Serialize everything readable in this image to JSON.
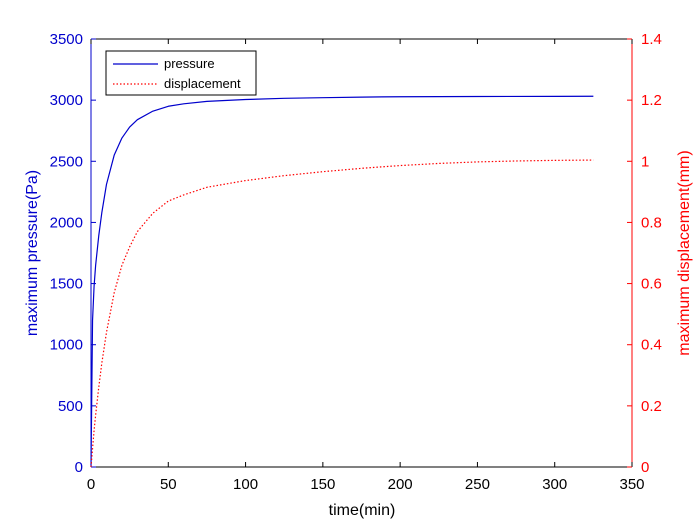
{
  "chart_data": {
    "type": "line",
    "xlabel": "time(min)",
    "ylabel_left": "maximum pressure(Pa)",
    "ylabel_right": "maximum displacement(mm)",
    "xlim": [
      0,
      350
    ],
    "ylim_left": [
      0,
      3500
    ],
    "ylim_right": [
      0,
      1.4
    ],
    "x_ticks": [
      "0",
      "50",
      "100",
      "150",
      "200",
      "250",
      "300",
      "350"
    ],
    "y_left_ticks": [
      "0",
      "500",
      "1000",
      "1500",
      "2000",
      "2500",
      "3000",
      "3500"
    ],
    "y_right_ticks": [
      "0",
      "0.2",
      "0.4",
      "0.6",
      "0.8",
      "1",
      "1.2",
      "1.4"
    ],
    "grid": false,
    "legend_position": "top-left",
    "colors": {
      "pressure": "#0000cc",
      "displacement": "#ff0000",
      "left_axis": "#0000cc",
      "right_axis": "#ff0000"
    },
    "series": [
      {
        "name": "pressure",
        "axis": "left",
        "style": "solid",
        "x": [
          0,
          1,
          2,
          3,
          5,
          7,
          10,
          15,
          20,
          25,
          30,
          40,
          50,
          60,
          75,
          100,
          125,
          150,
          175,
          200,
          250,
          300,
          325
        ],
        "y": [
          0,
          1200,
          1480,
          1650,
          1890,
          2080,
          2310,
          2550,
          2690,
          2780,
          2840,
          2910,
          2950,
          2970,
          2990,
          3005,
          3015,
          3020,
          3025,
          3028,
          3030,
          3031,
          3032
        ]
      },
      {
        "name": "displacement",
        "axis": "right",
        "style": "dotted",
        "x": [
          0,
          1,
          2,
          3,
          5,
          7,
          10,
          15,
          20,
          25,
          30,
          40,
          50,
          60,
          75,
          100,
          125,
          150,
          175,
          200,
          225,
          250,
          275,
          300,
          325
        ],
        "y": [
          0,
          0.06,
          0.12,
          0.17,
          0.26,
          0.34,
          0.44,
          0.57,
          0.66,
          0.72,
          0.77,
          0.83,
          0.87,
          0.89,
          0.915,
          0.937,
          0.953,
          0.966,
          0.977,
          0.986,
          0.993,
          0.998,
          1.001,
          1.003,
          1.004
        ]
      }
    ]
  }
}
